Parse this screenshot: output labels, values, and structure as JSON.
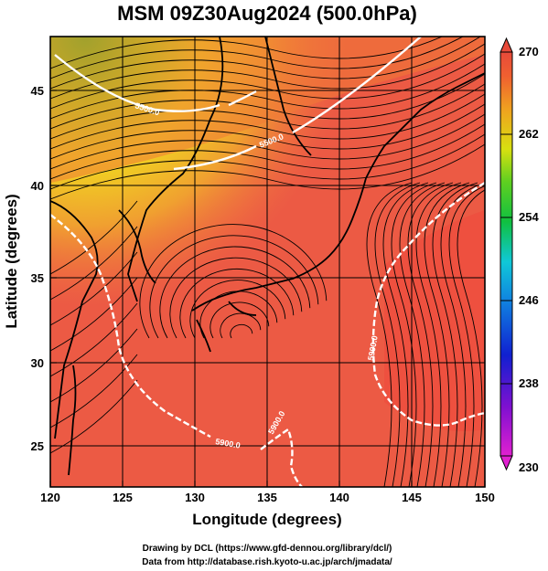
{
  "title": "MSM 09Z30Aug2024 (500.0hPa)",
  "xlabel": "Longitude (degrees)",
  "ylabel": "Latitude  (degrees)",
  "x_ticks": [
    "120",
    "125",
    "130",
    "135",
    "140",
    "145",
    "150"
  ],
  "y_ticks": [
    "25",
    "30",
    "35",
    "40",
    "45"
  ],
  "colorbar": {
    "ticks": [
      "270",
      "262",
      "254",
      "246",
      "238",
      "230"
    ],
    "min": 230,
    "max": 270
  },
  "contour_labels": [
    "5500.0",
    "5500.0",
    "5900.0",
    "5900.0",
    "5900.0"
  ],
  "credits": {
    "line1": "Drawing by DCL (https://www.gfd-dennou.org/library/dcl/)",
    "line2": "Data from http://database.rish.kyoto-u.ac.jp/arch/jmadata/"
  },
  "map": {
    "lon_range": [
      120,
      150
    ],
    "lat_range": [
      22.7,
      47.8
    ],
    "fill_variable": "temperature (K)",
    "contour_variable": "geopotential height"
  }
}
